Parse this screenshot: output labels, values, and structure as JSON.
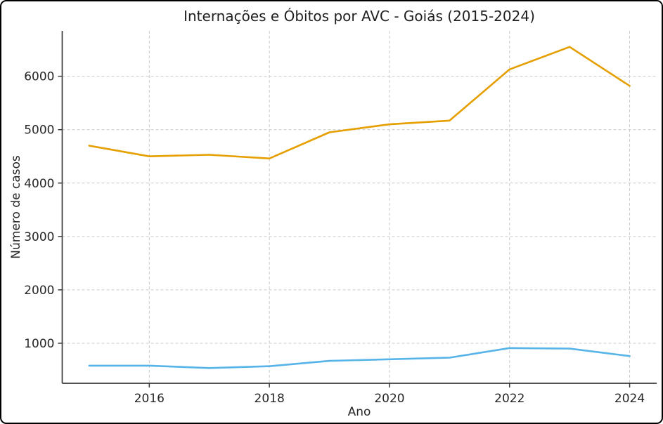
{
  "window": {
    "background_color": "#ffffff",
    "border_color": "#000000"
  },
  "chart_data": {
    "type": "line",
    "title": "Internações e Óbitos por AVC - Goiás (2015-2024)",
    "xlabel": "Ano",
    "ylabel": "Número de casos",
    "x": [
      2015,
      2016,
      2017,
      2018,
      2019,
      2020,
      2021,
      2022,
      2023,
      2024
    ],
    "series": [
      {
        "name": "Internações",
        "color": "#E69F00",
        "values": [
          4700,
          4500,
          4530,
          4460,
          4950,
          5100,
          5170,
          6130,
          6550,
          5820
        ]
      },
      {
        "name": "Óbitos",
        "color": "#56B4E9",
        "values": [
          580,
          580,
          535,
          570,
          670,
          700,
          730,
          910,
          900,
          760
        ]
      }
    ],
    "x_ticks": [
      2016,
      2018,
      2020,
      2022,
      2024
    ],
    "y_ticks": [
      1000,
      2000,
      3000,
      4000,
      5000,
      6000
    ],
    "xlim": [
      2014.55,
      2024.45
    ],
    "ylim": [
      250,
      6850
    ],
    "grid": true,
    "grid_style": "dashed",
    "grid_color": "#c9c9c9",
    "spine_color": "#3a3a3a",
    "legend": false
  }
}
